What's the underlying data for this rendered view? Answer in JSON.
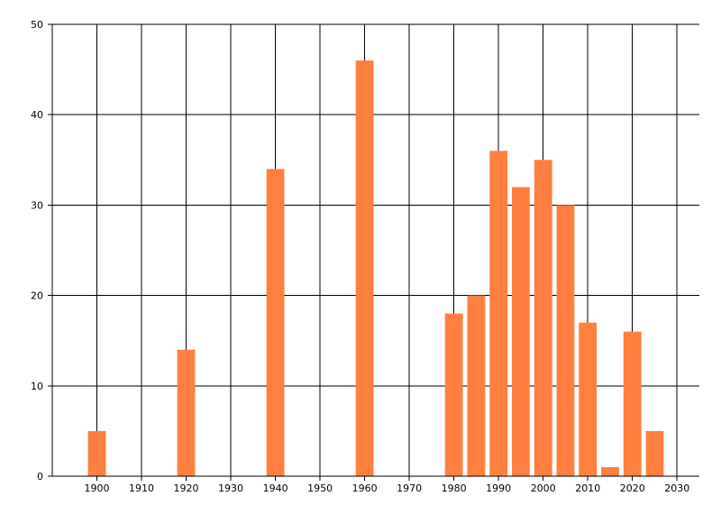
{
  "chart_data": {
    "type": "bar",
    "title": "",
    "xlabel": "",
    "ylabel": "",
    "x": [
      1900,
      1920,
      1940,
      1960,
      1980,
      1985,
      1990,
      1995,
      2000,
      2005,
      2010,
      2015,
      2020,
      2025
    ],
    "values": [
      5,
      14,
      34,
      46,
      18,
      20,
      36,
      32,
      35,
      30,
      17,
      1,
      16,
      5
    ],
    "xlim": [
      1890,
      2035
    ],
    "ylim": [
      0,
      50
    ],
    "x_ticks": [
      1900,
      1910,
      1920,
      1930,
      1940,
      1950,
      1960,
      1970,
      1980,
      1990,
      2000,
      2010,
      2020,
      2030
    ],
    "y_ticks": [
      0,
      10,
      20,
      30,
      40,
      50
    ],
    "bar_width_years": 4,
    "grid": true,
    "legend": "none",
    "colors": {
      "bar": "#FF7F3F",
      "grid": "#000000",
      "axis": "#000000"
    }
  }
}
